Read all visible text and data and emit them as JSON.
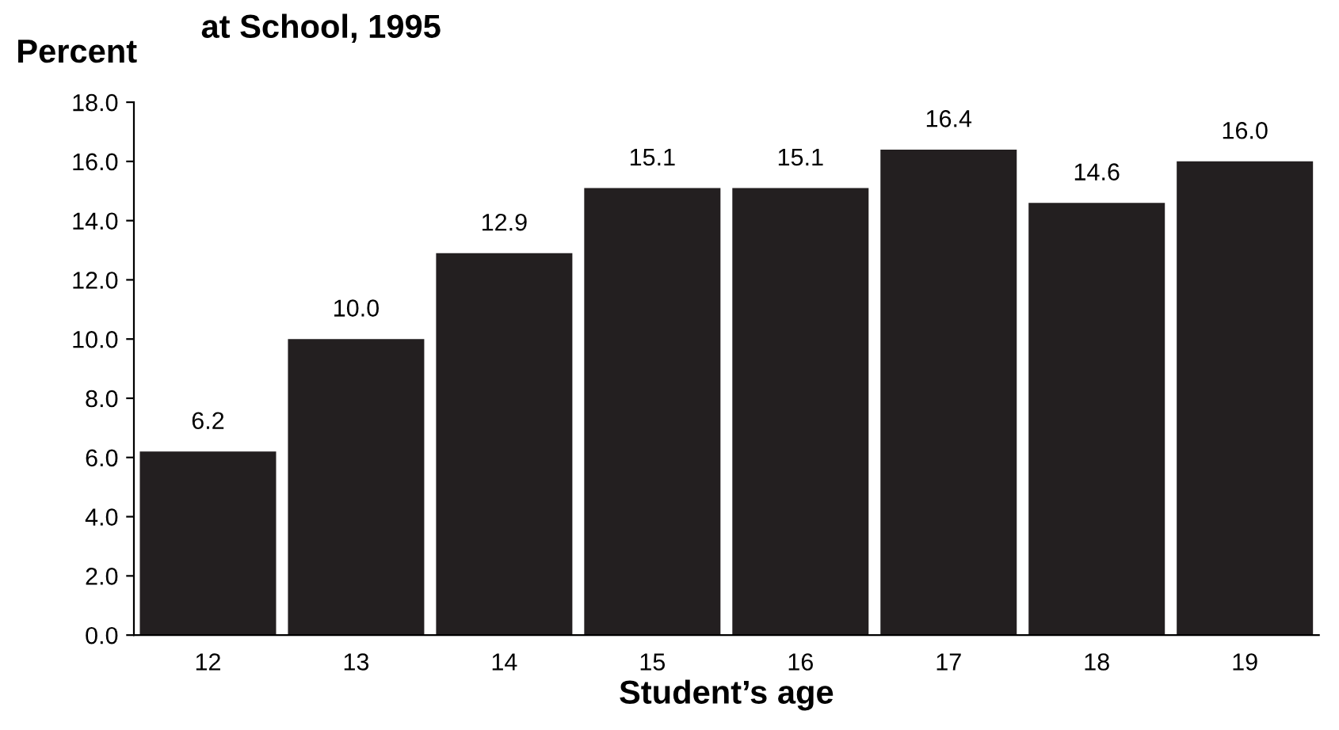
{
  "chart_data": {
    "type": "bar",
    "title": "at School, 1995",
    "ylabel": "Percent",
    "xlabel": "Student’s age",
    "categories": [
      "12",
      "13",
      "14",
      "15",
      "16",
      "17",
      "18",
      "19"
    ],
    "values": [
      6.2,
      10.0,
      12.9,
      15.1,
      15.1,
      16.4,
      14.6,
      16.0
    ],
    "value_labels": [
      "6.2",
      "10.0",
      "12.9",
      "15.1",
      "15.1",
      "16.4",
      "14.6",
      "16.0"
    ],
    "color": "#231f20",
    "ylim": [
      0,
      18
    ],
    "yticks": [
      {
        "value": 0,
        "label": "0.0"
      },
      {
        "value": 2,
        "label": "2.0"
      },
      {
        "value": 4,
        "label": "4.0"
      },
      {
        "value": 6,
        "label": "6.0"
      },
      {
        "value": 8,
        "label": "8.0"
      },
      {
        "value": 10,
        "label": "10.0"
      },
      {
        "value": 12,
        "label": "12.0"
      },
      {
        "value": 14,
        "label": "14.0"
      },
      {
        "value": 16,
        "label": "16.0"
      },
      {
        "value": 18,
        "label": "18.0"
      }
    ],
    "grid": false,
    "legend": false
  }
}
